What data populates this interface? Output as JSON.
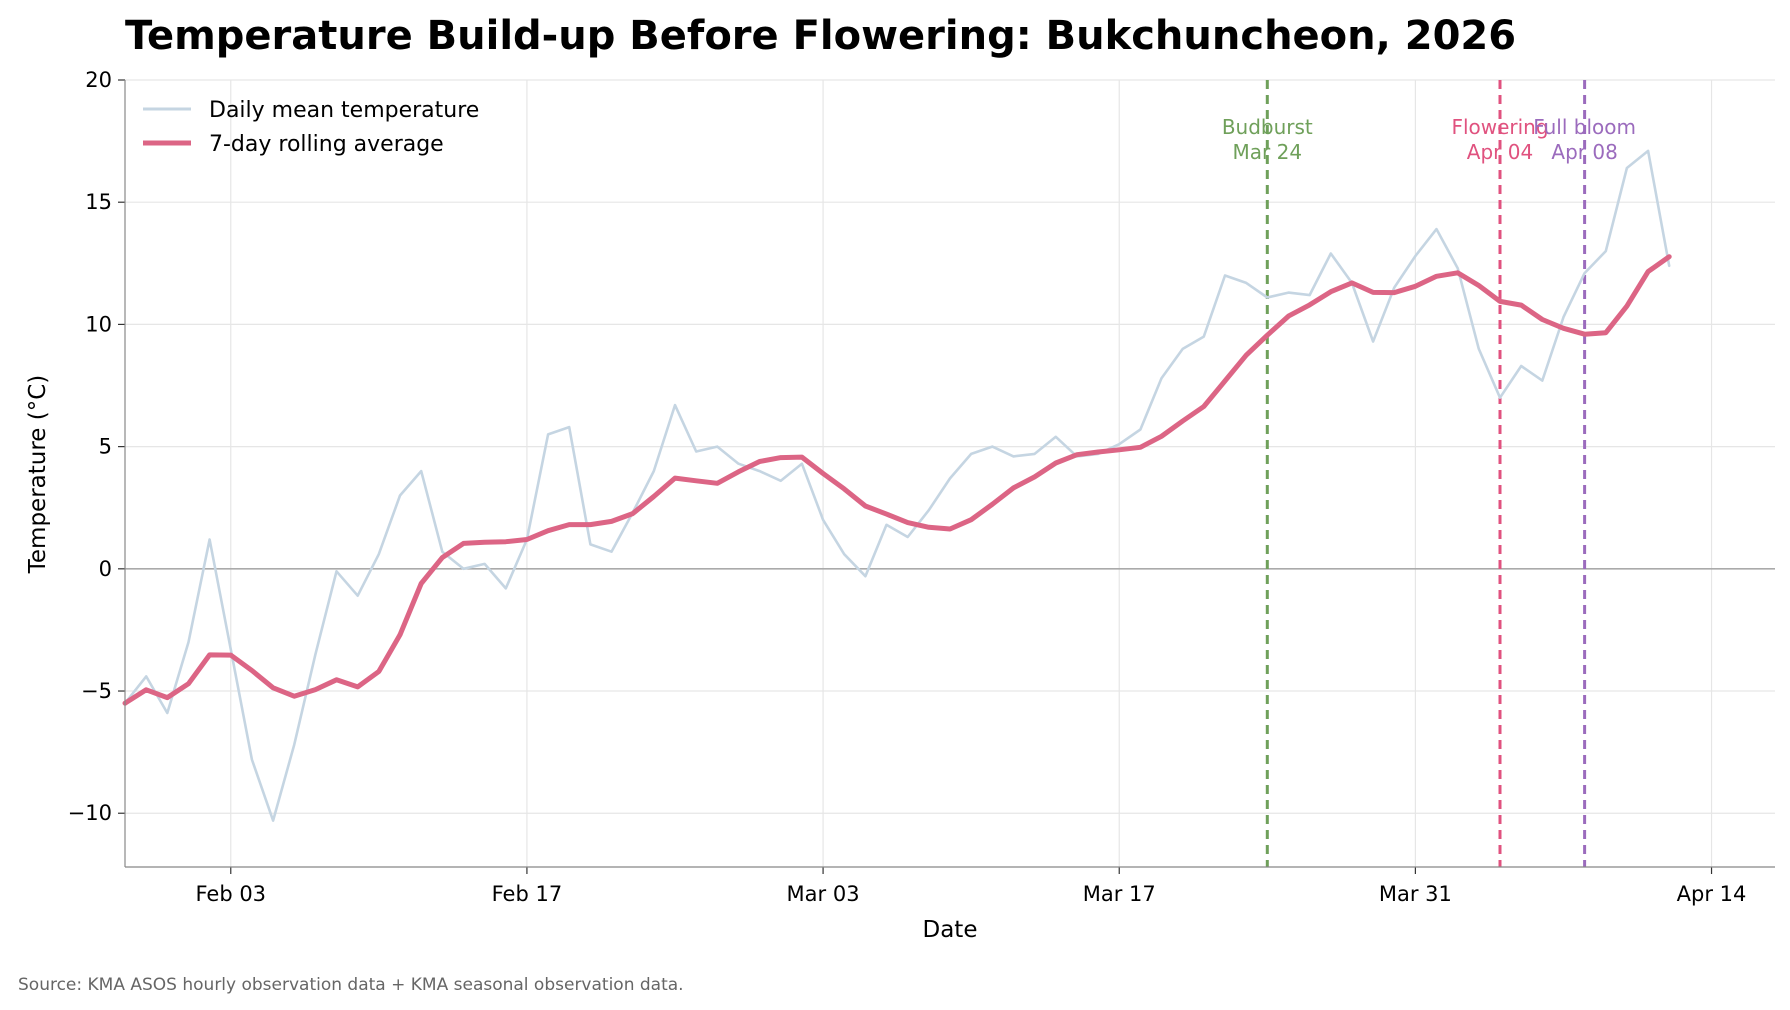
{
  "chart_data": {
    "type": "line",
    "title": "Temperature Build-up Before Flowering: Bukchuncheon, 2026",
    "xlabel": "Date",
    "ylabel": "Temperature (°C)",
    "source": "Source: KMA ASOS hourly observation data + KMA seasonal observation data.",
    "x_range": [
      "2026-01-29",
      "2026-04-17"
    ],
    "ylim": [
      -12.2,
      20
    ],
    "y_ticks": [
      -10,
      -5,
      0,
      5,
      10,
      15,
      20
    ],
    "y_tick_labels": [
      "−10",
      "−5",
      "0",
      "5",
      "10",
      "15",
      "20"
    ],
    "x_ticks": [
      "2026-02-03",
      "2026-02-17",
      "2026-03-03",
      "2026-03-17",
      "2026-03-31",
      "2026-04-14"
    ],
    "x_tick_labels": [
      "Feb 03",
      "Feb 17",
      "Mar 03",
      "Mar 17",
      "Mar 31",
      "Apr 14"
    ],
    "grid": true,
    "legend_position": "top-left",
    "start_date": "2026-01-29",
    "series": [
      {
        "name": "Daily mean temperature",
        "color": "#c5d5e2",
        "values": [
          -5.5,
          -4.4,
          -5.9,
          -3.0,
          1.2,
          -3.3,
          -7.8,
          -10.3,
          -7.2,
          -3.5,
          -0.1,
          -1.1,
          0.6,
          3.0,
          4.0,
          0.7,
          0.0,
          0.2,
          -0.8,
          1.2,
          5.5,
          5.8,
          1.0,
          0.7,
          2.3,
          4.0,
          6.7,
          4.8,
          5.0,
          4.3,
          4.0,
          3.6,
          4.3,
          2.0,
          0.6,
          -0.3,
          1.8,
          1.3,
          2.4,
          3.7,
          4.7,
          5.0,
          4.6,
          4.7,
          5.4,
          4.6,
          4.7,
          5.1,
          5.7,
          7.8,
          9.0,
          9.5,
          12.0,
          11.7,
          11.1,
          11.3,
          11.2,
          12.9,
          11.7,
          9.3,
          11.5,
          12.8,
          13.9,
          12.3,
          9.0,
          7.0,
          8.3,
          7.7,
          10.3,
          12.1,
          13.0,
          16.4,
          17.1,
          12.4
        ]
      },
      {
        "name": "7-day rolling average",
        "color": "#dc6585",
        "values": [
          -5.5,
          -4.95,
          -5.27,
          -4.7,
          -3.52,
          -3.53,
          -4.16,
          -4.87,
          -5.21,
          -4.94,
          -4.54,
          -4.83,
          -4.2,
          -2.7,
          -0.6,
          0.46,
          1.04,
          1.09,
          1.11,
          1.2,
          1.56,
          1.81,
          1.81,
          1.94,
          2.26,
          2.96,
          3.71,
          3.6,
          3.5,
          3.97,
          4.39,
          4.55,
          4.57,
          3.9,
          3.27,
          2.57,
          2.24,
          1.89,
          1.7,
          1.63,
          2.01,
          2.64,
          3.31,
          3.76,
          4.33,
          4.67,
          4.78,
          4.87,
          4.97,
          5.42,
          6.05,
          6.64,
          7.69,
          8.74,
          9.56,
          10.34,
          10.8,
          11.34,
          11.7,
          11.31,
          11.3,
          11.56,
          11.97,
          12.11,
          11.59,
          10.94,
          10.79,
          10.2,
          9.84,
          9.6,
          9.66,
          10.75,
          12.16,
          12.77
        ]
      }
    ],
    "events": [
      {
        "label": "Budburst",
        "date_label": "Mar 24",
        "date": "2026-03-24",
        "color": "#6fa05a"
      },
      {
        "label": "Flowering",
        "date_label": "Apr 04",
        "date": "2026-04-04",
        "color": "#e0527f"
      },
      {
        "label": "Full bloom",
        "date_label": "Apr 08",
        "date": "2026-04-08",
        "color": "#9b6bbd"
      }
    ]
  }
}
